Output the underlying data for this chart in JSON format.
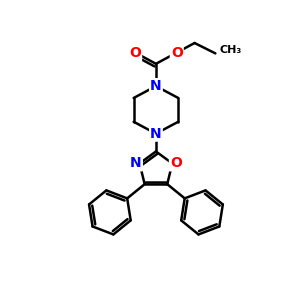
{
  "background_color": "#ffffff",
  "atom_colors": {
    "N": "#0000ff",
    "O": "#ff0000",
    "C": "#000000"
  },
  "bond_color": "#000000",
  "bond_width": 1.8,
  "figsize": [
    3.0,
    3.0
  ],
  "dpi": 100
}
